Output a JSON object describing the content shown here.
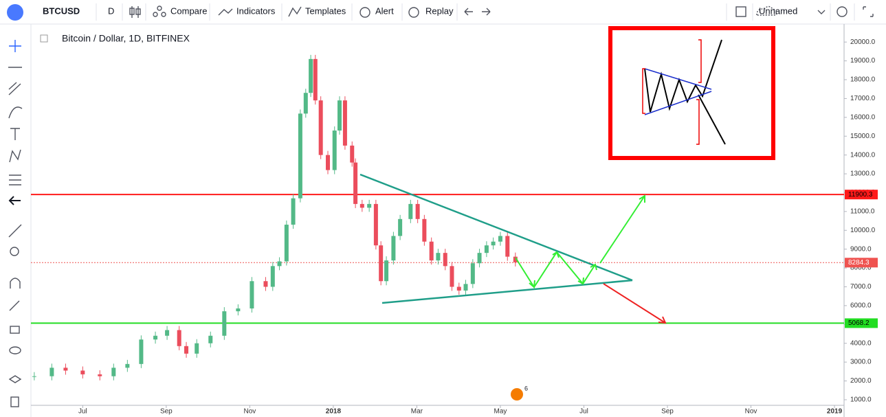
{
  "toolbar": {
    "symbol": "BTCUSD",
    "interval": "D",
    "compare": "Compare",
    "indicators": "Indicators",
    "templates": "Templates",
    "alert": "Alert",
    "replay": "Replay",
    "layout_name": "Unnamed"
  },
  "events_badge": "6",
  "chart_data": {
    "type": "candlestick",
    "title": "Bitcoin / Dollar, 1D, BITFINEX",
    "x": [
      5.84,
      6.26,
      6.59,
      7,
      7.41,
      7.74,
      8.07,
      8.4,
      8.74,
      9.02,
      9.31,
      9.48,
      9.73,
      10.06,
      10.39,
      10.72,
      11.05,
      11.38,
      11.55,
      11.71,
      11.88,
      12.04,
      12.21,
      12.34,
      12.46,
      12.57,
      12.7,
      12.87,
      13.03,
      13.15,
      13.28,
      13.45,
      13.53,
      13.69,
      13.86,
      14.02,
      14.14,
      14.27,
      14.44,
      14.6,
      14.85,
      15.02,
      15.18,
      15.35,
      15.51,
      15.68,
      15.84,
      16.01,
      16.17,
      16.34,
      16.5,
      16.67,
      16.83,
      17,
      17.17,
      17.36
    ],
    "series": [
      {
        "name": "BTCUSD",
        "values": [
          2250,
          2700,
          2550,
          2350,
          2250,
          2700,
          2900,
          4200,
          4400,
          4700,
          3850,
          3450,
          4000,
          4400,
          5700,
          5850,
          7300,
          7000,
          8100,
          8350,
          10300,
          11700,
          16200,
          17300,
          19100,
          16900,
          14000,
          13200,
          15300,
          16900,
          14500,
          13600,
          11400,
          11200,
          11400,
          9200,
          7300,
          8400,
          9700,
          10600,
          11400,
          10600,
          9400,
          8400,
          8800,
          8100,
          7000,
          6800,
          7150,
          8250,
          8800,
          9200,
          9400,
          9700,
          8600,
          8300
        ]
      }
    ],
    "up_color": "#53b987",
    "down_color": "#eb4d5c",
    "xlim": [
      5.76,
      25.23
    ],
    "xticks": [
      {
        "value": 7,
        "label": "Jul"
      },
      {
        "value": 9,
        "label": "Sep"
      },
      {
        "value": 11,
        "label": "Nov"
      },
      {
        "value": 13,
        "label": "2018"
      },
      {
        "value": 15,
        "label": "Mar"
      },
      {
        "value": 17,
        "label": "May"
      },
      {
        "value": 19,
        "label": "Jul"
      },
      {
        "value": 21,
        "label": "Sep"
      },
      {
        "value": 23,
        "label": "Nov"
      },
      {
        "value": 25,
        "label": "2019"
      }
    ],
    "ylim": [
      705,
      20956
    ],
    "yticks": [
      {
        "value": 1000,
        "label": "1000.0"
      },
      {
        "value": 2000,
        "label": "2000.0"
      },
      {
        "value": 3000,
        "label": "3000.0"
      },
      {
        "value": 4000,
        "label": "4000.0"
      },
      {
        "value": 5000,
        "label": "5000.0"
      },
      {
        "value": 6000,
        "label": "6000.0"
      },
      {
        "value": 7000,
        "label": "7000.0"
      },
      {
        "value": 8000,
        "label": "8000.0"
      },
      {
        "value": 9000,
        "label": "9000.0"
      },
      {
        "value": 10000,
        "label": "10000.0"
      },
      {
        "value": 11000,
        "label": "11000.0"
      },
      {
        "value": 12000,
        "label": "12000.0"
      },
      {
        "value": 13000,
        "label": "13000.0"
      },
      {
        "value": 14000,
        "label": "14000.0"
      },
      {
        "value": 15000,
        "label": "15000.0"
      },
      {
        "value": 16000,
        "label": "16000.0"
      },
      {
        "value": 17000,
        "label": "17000.0"
      },
      {
        "value": 18000,
        "label": "18000.0"
      },
      {
        "value": 19000,
        "label": "19000.0"
      },
      {
        "value": 20000,
        "label": "20000.0"
      }
    ],
    "grid": false,
    "hlines": [
      {
        "value": 11900.3,
        "color": "#ff1a1a",
        "style": "solid"
      },
      {
        "value": 5068.2,
        "color": "#22dd22",
        "style": "solid"
      },
      {
        "value": 8284.3,
        "color": "#ef5350",
        "style": "dotted"
      }
    ]
  }
}
